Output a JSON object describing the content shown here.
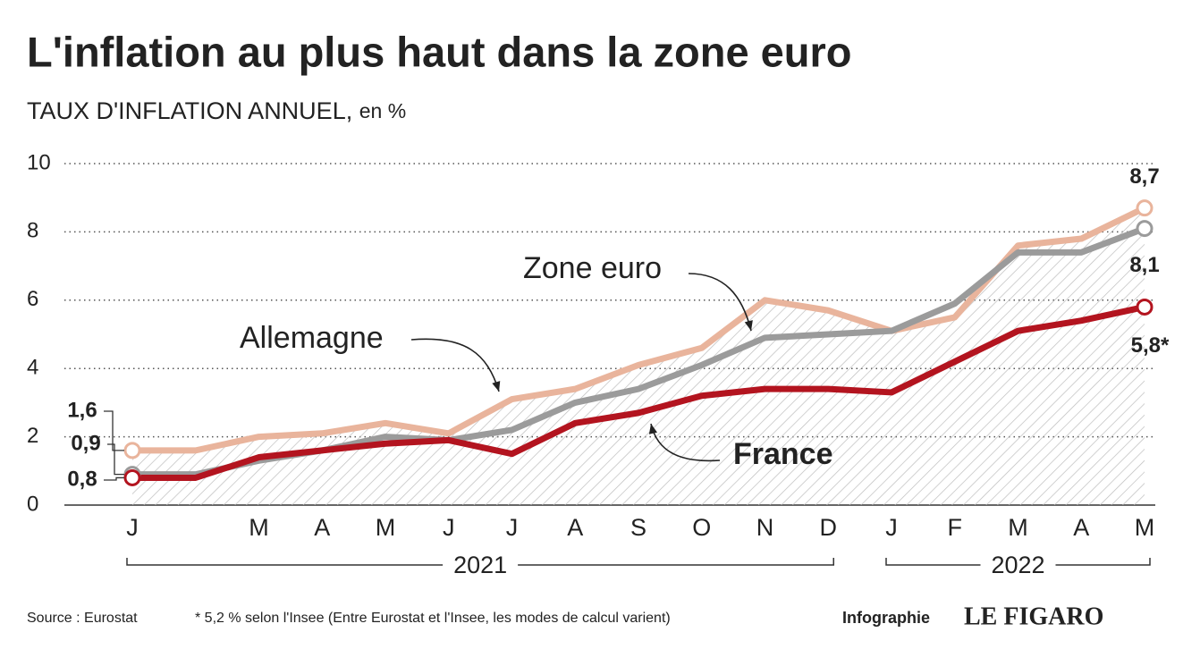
{
  "chart_data": {
    "type": "line",
    "title": "L'inflation au plus haut dans la zone euro",
    "subtitle": "TAUX D'INFLATION ANNUEL,",
    "unit": "en %",
    "categories": [
      "J",
      null,
      "M",
      "A",
      "M",
      "J",
      "J",
      "A",
      "S",
      "O",
      "N",
      "D",
      "J",
      "F",
      "M",
      "A",
      "M"
    ],
    "groups": [
      {
        "label": "2021",
        "from": 0,
        "to": 11
      },
      {
        "label": "2022",
        "from": 12,
        "to": 16
      }
    ],
    "series": [
      {
        "name": "Allemagne",
        "color": "#e9b49c",
        "values": [
          1.6,
          1.6,
          2.0,
          2.1,
          2.4,
          2.1,
          3.1,
          3.4,
          4.1,
          4.6,
          6.0,
          5.7,
          5.1,
          5.5,
          7.6,
          7.8,
          8.7
        ],
        "value_labels": [
          "1,6",
          null,
          null,
          null,
          null,
          null,
          null,
          null,
          null,
          null,
          null,
          null,
          null,
          null,
          null,
          null,
          "8,7"
        ]
      },
      {
        "name": "Zone euro",
        "color": "#9b9b9b",
        "values": [
          0.9,
          0.9,
          1.3,
          1.6,
          2.0,
          1.9,
          2.2,
          3.0,
          3.4,
          4.1,
          4.9,
          5.0,
          5.1,
          5.9,
          7.4,
          7.4,
          8.1
        ],
        "value_labels": [
          "0,9",
          null,
          null,
          null,
          null,
          null,
          null,
          null,
          null,
          null,
          null,
          null,
          null,
          null,
          null,
          null,
          "8,1"
        ]
      },
      {
        "name": "France",
        "color": "#b3141f",
        "values": [
          0.8,
          0.8,
          1.4,
          1.6,
          1.8,
          1.9,
          1.5,
          2.4,
          2.7,
          3.2,
          3.4,
          3.4,
          3.3,
          4.2,
          5.1,
          5.4,
          5.8
        ],
        "value_labels": [
          "0,8",
          null,
          null,
          null,
          null,
          null,
          null,
          null,
          null,
          null,
          null,
          null,
          null,
          null,
          null,
          null,
          "5,8*"
        ]
      }
    ],
    "ylim": [
      0,
      10
    ],
    "yticks": [
      0,
      2,
      4,
      6,
      8,
      10
    ],
    "grid": true,
    "source": "Source : Eurostat",
    "note": "* 5,2 % selon l'Insee (Entre Eurostat et l'Insee, les modes de calcul varient)",
    "credit": "Infographie",
    "brand": "LE FIGARO"
  }
}
